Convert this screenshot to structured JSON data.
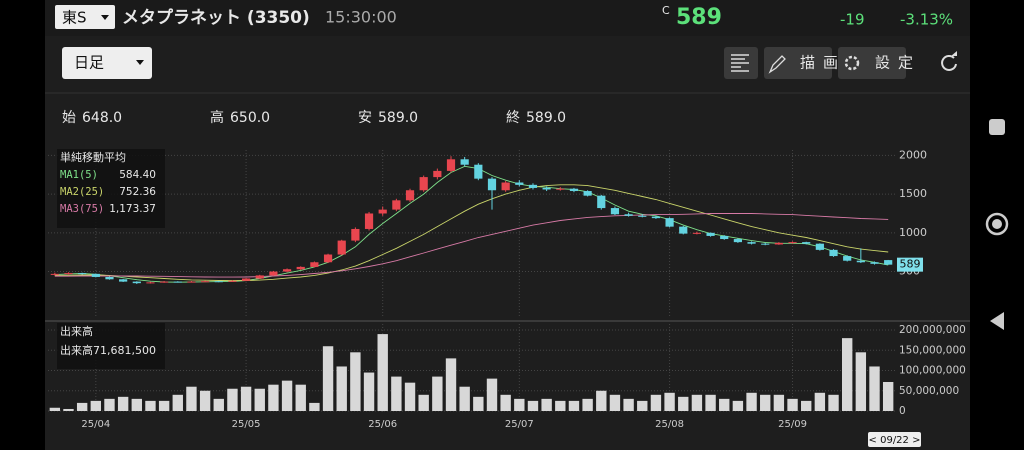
{
  "header": {
    "exchange": "東S",
    "name": "メタプラネット (3350)",
    "time": "15:30:00",
    "price_prefix": "C",
    "price": "589",
    "change": "-19",
    "change_pct": "-3.13%"
  },
  "toolbar": {
    "period": "日足",
    "draw": "描画",
    "settings": "設定"
  },
  "ohlc": [
    {
      "label": "始",
      "value": "648.0"
    },
    {
      "label": "高",
      "value": "650.0"
    },
    {
      "label": "安",
      "value": "589.0"
    },
    {
      "label": "終",
      "value": "589.0"
    }
  ],
  "chart_data": [
    {
      "type": "candlestick",
      "legend_title": "単純移動平均",
      "last_label": "589",
      "up_color": "#e8464f",
      "down_color": "#63d3e0",
      "grid": true,
      "ylim": [
        -100,
        2070
      ],
      "yticks": [
        500,
        1000,
        1500,
        2000
      ],
      "candles": [
        [
          460,
          485,
          450,
          470
        ],
        [
          470,
          490,
          460,
          480
        ],
        [
          480,
          485,
          462,
          470
        ],
        [
          470,
          472,
          425,
          430
        ],
        [
          430,
          435,
          395,
          400
        ],
        [
          400,
          405,
          365,
          370
        ],
        [
          370,
          375,
          340,
          350
        ],
        [
          350,
          368,
          345,
          360
        ],
        [
          360,
          378,
          355,
          370
        ],
        [
          370,
          375,
          358,
          365
        ],
        [
          365,
          378,
          360,
          370
        ],
        [
          370,
          382,
          366,
          375
        ],
        [
          375,
          380,
          362,
          370
        ],
        [
          370,
          388,
          366,
          380
        ],
        [
          380,
          415,
          376,
          410
        ],
        [
          410,
          458,
          405,
          450
        ],
        [
          450,
          508,
          445,
          500
        ],
        [
          500,
          540,
          490,
          530
        ],
        [
          530,
          568,
          520,
          560
        ],
        [
          560,
          630,
          552,
          620
        ],
        [
          620,
          730,
          610,
          720
        ],
        [
          720,
          910,
          710,
          900
        ],
        [
          900,
          1070,
          880,
          1050
        ],
        [
          1050,
          1270,
          1030,
          1250
        ],
        [
          1250,
          1340,
          1220,
          1300
        ],
        [
          1300,
          1440,
          1280,
          1420
        ],
        [
          1420,
          1570,
          1400,
          1550
        ],
        [
          1550,
          1740,
          1530,
          1720
        ],
        [
          1720,
          1830,
          1690,
          1800
        ],
        [
          1800,
          1990,
          1780,
          1950
        ],
        [
          1950,
          1980,
          1860,
          1880
        ],
        [
          1880,
          1900,
          1680,
          1700
        ],
        [
          1700,
          1720,
          1300,
          1550
        ],
        [
          1550,
          1670,
          1530,
          1650
        ],
        [
          1650,
          1680,
          1600,
          1620
        ],
        [
          1620,
          1640,
          1560,
          1580
        ],
        [
          1580,
          1600,
          1540,
          1560
        ],
        [
          1560,
          1590,
          1545,
          1570
        ],
        [
          1570,
          1580,
          1525,
          1540
        ],
        [
          1540,
          1550,
          1470,
          1480
        ],
        [
          1480,
          1490,
          1300,
          1320
        ],
        [
          1320,
          1340,
          1230,
          1240
        ],
        [
          1240,
          1260,
          1210,
          1220
        ],
        [
          1220,
          1240,
          1200,
          1210
        ],
        [
          1210,
          1220,
          1180,
          1190
        ],
        [
          1190,
          1200,
          1070,
          1080
        ],
        [
          1080,
          1090,
          980,
          990
        ],
        [
          990,
          1015,
          980,
          1000
        ],
        [
          1000,
          1005,
          950,
          960
        ],
        [
          960,
          970,
          910,
          920
        ],
        [
          920,
          930,
          870,
          880
        ],
        [
          880,
          890,
          850,
          860
        ],
        [
          860,
          870,
          840,
          850
        ],
        [
          850,
          880,
          845,
          870
        ],
        [
          870,
          890,
          860,
          880
        ],
        [
          880,
          885,
          850,
          860
        ],
        [
          860,
          865,
          770,
          780
        ],
        [
          780,
          790,
          690,
          700
        ],
        [
          700,
          710,
          630,
          640
        ],
        [
          640,
          800,
          610,
          620
        ],
        [
          620,
          630,
          590,
          600
        ],
        [
          648,
          650,
          589,
          589
        ]
      ],
      "series": [
        {
          "name": "MA1(5)",
          "color": "#7ee08a",
          "legend_value": "584.40",
          "values": [
            460,
            470,
            475,
            465,
            445,
            420,
            395,
            375,
            365,
            362,
            365,
            368,
            370,
            372,
            385,
            410,
            445,
            480,
            515,
            560,
            620,
            710,
            820,
            980,
            1120,
            1250,
            1380,
            1500,
            1650,
            1780,
            1860,
            1830,
            1740,
            1680,
            1630,
            1600,
            1590,
            1570,
            1560,
            1530,
            1450,
            1360,
            1280,
            1240,
            1220,
            1170,
            1100,
            1040,
            990,
            960,
            930,
            900,
            875,
            865,
            865,
            860,
            820,
            760,
            700,
            650,
            620,
            584.4
          ]
        },
        {
          "name": "MA2(25)",
          "color": "#c9d46a",
          "legend_value": "752.36",
          "values": [
            450,
            452,
            455,
            455,
            450,
            440,
            430,
            420,
            410,
            400,
            392,
            388,
            385,
            383,
            385,
            390,
            400,
            415,
            430,
            450,
            480,
            520,
            570,
            640,
            720,
            800,
            890,
            980,
            1080,
            1180,
            1280,
            1370,
            1440,
            1500,
            1550,
            1590,
            1610,
            1620,
            1620,
            1610,
            1580,
            1550,
            1510,
            1470,
            1430,
            1380,
            1330,
            1280,
            1230,
            1180,
            1130,
            1080,
            1040,
            1000,
            970,
            940,
            900,
            860,
            820,
            790,
            770,
            752.36
          ]
        },
        {
          "name": "MA3(75)",
          "color": "#d77aa6",
          "legend_value": "1,173.37",
          "values": [
            440,
            440,
            442,
            443,
            443,
            443,
            442,
            440,
            438,
            435,
            432,
            430,
            428,
            428,
            430,
            435,
            442,
            450,
            460,
            475,
            490,
            510,
            535,
            565,
            600,
            640,
            690,
            740,
            790,
            840,
            890,
            940,
            980,
            1020,
            1060,
            1100,
            1130,
            1160,
            1180,
            1200,
            1210,
            1220,
            1225,
            1230,
            1235,
            1235,
            1240,
            1245,
            1250,
            1250,
            1250,
            1250,
            1245,
            1240,
            1235,
            1225,
            1215,
            1205,
            1195,
            1185,
            1180,
            1173.37
          ]
        }
      ]
    },
    {
      "type": "bar",
      "legend_title": "出来高",
      "legend_name": "出来高",
      "legend_value": "71,681,500",
      "cursor_label": "< 09/22 >",
      "color": "#d8d8d8",
      "grid": true,
      "ylim": [
        0,
        210000000
      ],
      "yticks": [
        0,
        {
          "value": 50000000,
          "label": "50,000,000"
        },
        {
          "value": 100000000,
          "label": "100,000,000"
        },
        {
          "value": 150000000,
          "label": "150,000,000"
        },
        {
          "value": 200000000,
          "label": "200,000,000"
        }
      ],
      "categories": [
        null,
        null,
        null,
        "25/04",
        null,
        null,
        null,
        null,
        null,
        null,
        null,
        null,
        null,
        null,
        "25/05",
        null,
        null,
        null,
        null,
        null,
        null,
        null,
        null,
        null,
        "25/06",
        null,
        null,
        null,
        null,
        null,
        null,
        null,
        null,
        null,
        "25/07",
        null,
        null,
        null,
        null,
        null,
        null,
        null,
        null,
        null,
        null,
        "25/08",
        null,
        null,
        null,
        null,
        null,
        null,
        null,
        null,
        "25/09",
        null,
        null,
        null,
        null,
        null,
        null,
        null
      ],
      "values": [
        8000000,
        5000000,
        20000000,
        25000000,
        30000000,
        35000000,
        30000000,
        25000000,
        25000000,
        40000000,
        60000000,
        50000000,
        30000000,
        55000000,
        60000000,
        55000000,
        65000000,
        75000000,
        65000000,
        20000000,
        160000000,
        110000000,
        145000000,
        95000000,
        190000000,
        85000000,
        70000000,
        40000000,
        85000000,
        130000000,
        60000000,
        35000000,
        80000000,
        40000000,
        30000000,
        25000000,
        30000000,
        25000000,
        25000000,
        30000000,
        50000000,
        40000000,
        30000000,
        25000000,
        40000000,
        45000000,
        35000000,
        40000000,
        40000000,
        30000000,
        25000000,
        45000000,
        40000000,
        40000000,
        30000000,
        25000000,
        45000000,
        40000000,
        180000000,
        145000000,
        110000000,
        71681500
      ]
    }
  ]
}
